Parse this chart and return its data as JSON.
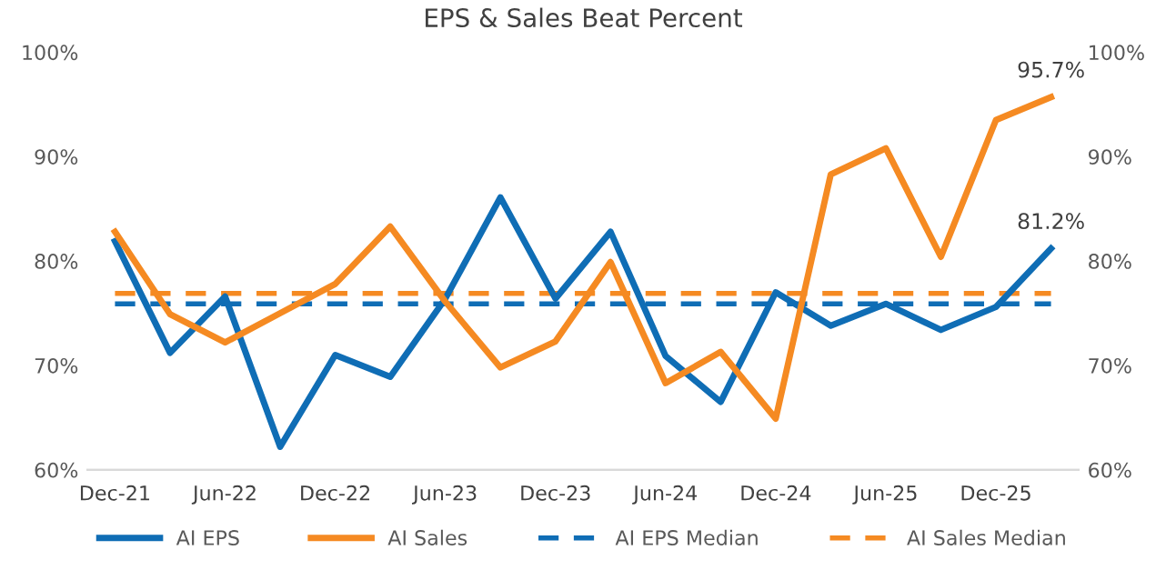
{
  "chart_data": {
    "type": "line",
    "title": "EPS & Sales Beat Percent",
    "categories": [
      "Dec-21",
      null,
      "Jun-22",
      null,
      "Dec-22",
      null,
      "Jun-23",
      null,
      "Dec-23",
      null,
      "Jun-24",
      null,
      "Dec-24",
      null,
      "Jun-25",
      null,
      "Dec-25",
      null
    ],
    "series": [
      {
        "name": "AI EPS",
        "color": "#0f6db5",
        "line_style": "solid",
        "values": [
          81.9,
          71.2,
          76.6,
          62.2,
          71.0,
          68.9,
          76.4,
          86.1,
          76.4,
          82.8,
          70.9,
          66.5,
          77.0,
          73.8,
          75.9,
          73.4,
          75.6,
          81.2
        ],
        "value_labels": [
          null,
          null,
          null,
          null,
          null,
          null,
          null,
          null,
          null,
          null,
          null,
          null,
          null,
          null,
          null,
          null,
          null,
          "81.2%"
        ]
      },
      {
        "name": "AI Sales",
        "color": "#f58a22",
        "line_style": "solid",
        "values": [
          82.8,
          74.9,
          72.2,
          75.0,
          77.8,
          83.3,
          76.1,
          69.8,
          72.3,
          79.9,
          68.3,
          71.3,
          64.9,
          88.3,
          90.8,
          80.4,
          93.5,
          95.7
        ],
        "value_labels": [
          null,
          null,
          null,
          null,
          null,
          null,
          null,
          null,
          null,
          null,
          null,
          null,
          null,
          null,
          null,
          null,
          null,
          "95.7%"
        ]
      },
      {
        "name": "AI EPS Median",
        "color": "#0f6db5",
        "line_style": "dashed",
        "values": [
          75.9,
          75.9,
          75.9,
          75.9,
          75.9,
          75.9,
          75.9,
          75.9,
          75.9,
          75.9,
          75.9,
          75.9,
          75.9,
          75.9,
          75.9,
          75.9,
          75.9,
          75.9
        ]
      },
      {
        "name": "AI Sales Median",
        "color": "#f58a22",
        "line_style": "dashed",
        "values": [
          76.9,
          76.9,
          76.9,
          76.9,
          76.9,
          76.9,
          76.9,
          76.9,
          76.9,
          76.9,
          76.9,
          76.9,
          76.9,
          76.9,
          76.9,
          76.9,
          76.9,
          76.9
        ]
      }
    ],
    "ylim": [
      60,
      100
    ],
    "yticks": [
      {
        "value": 60,
        "label": "60%"
      },
      {
        "value": 70,
        "label": "70%"
      },
      {
        "value": 80,
        "label": "80%"
      },
      {
        "value": 90,
        "label": "90%"
      },
      {
        "value": 100,
        "label": "100%"
      }
    ],
    "y2lim": [
      60,
      100
    ],
    "y2ticks": [
      {
        "value": 60,
        "label": "60%"
      },
      {
        "value": 70,
        "label": "70%"
      },
      {
        "value": 80,
        "label": "80%"
      },
      {
        "value": 90,
        "label": "90%"
      },
      {
        "value": 100,
        "label": "100%"
      }
    ],
    "grid": false,
    "legend": "bottom"
  }
}
